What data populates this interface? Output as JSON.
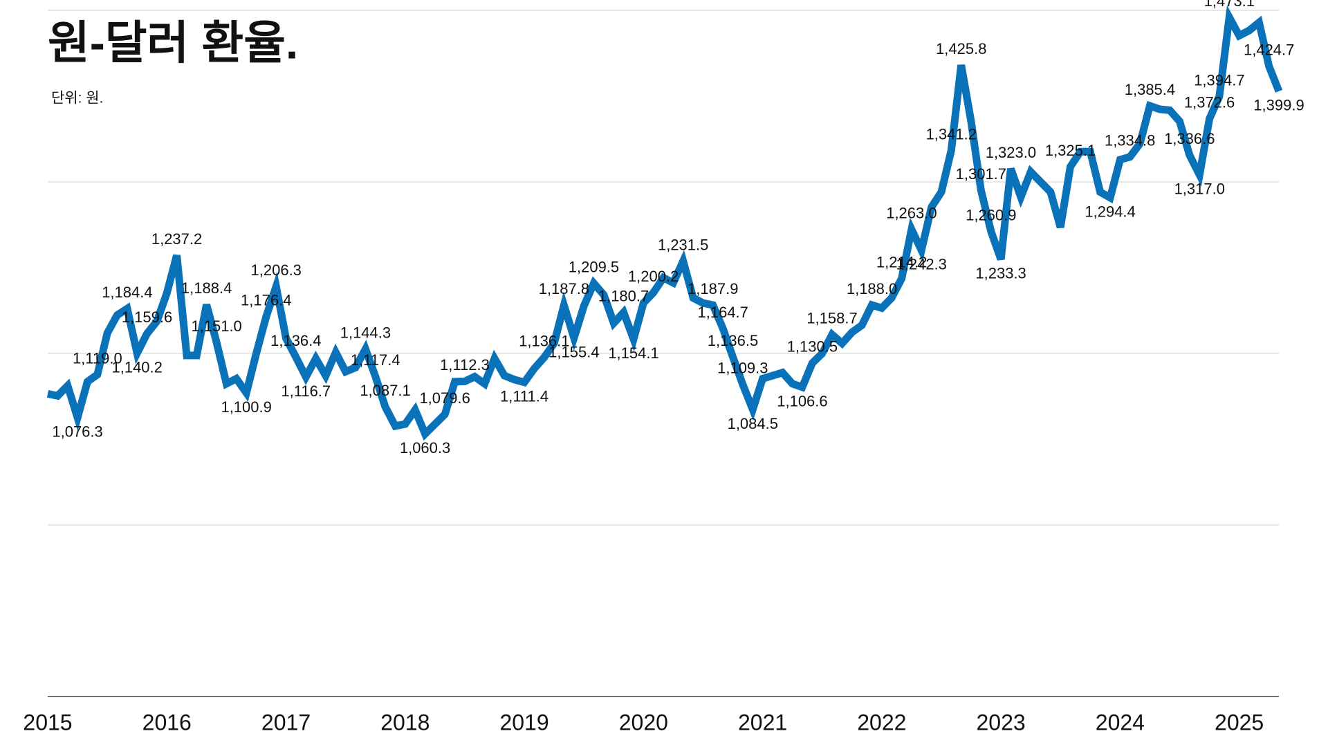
{
  "chart_data": {
    "type": "line",
    "title": "원-달러 환율.",
    "subtitle": "단위: 원.",
    "xlim": [
      2015,
      2025.333
    ],
    "xticks": [
      2015,
      2016,
      2017,
      2018,
      2019,
      2020,
      2021,
      2022,
      2023,
      2024,
      2025
    ],
    "ylim": [
      800,
      1480
    ],
    "yticks": [
      800,
      970,
      1140,
      1310,
      1480
    ],
    "grid": true,
    "x": [
      2015,
      2015.083,
      2015.167,
      2015.25,
      2015.333,
      2015.417,
      2015.5,
      2015.583,
      2015.667,
      2015.75,
      2015.833,
      2015.917,
      2016,
      2016.083,
      2016.167,
      2016.25,
      2016.333,
      2016.417,
      2016.5,
      2016.583,
      2016.667,
      2016.75,
      2016.833,
      2016.917,
      2017,
      2017.083,
      2017.167,
      2017.25,
      2017.333,
      2017.417,
      2017.5,
      2017.583,
      2017.667,
      2017.75,
      2017.833,
      2017.917,
      2018,
      2018.083,
      2018.167,
      2018.25,
      2018.333,
      2018.417,
      2018.5,
      2018.583,
      2018.667,
      2018.75,
      2018.833,
      2018.917,
      2019,
      2019.083,
      2019.167,
      2019.25,
      2019.333,
      2019.417,
      2019.5,
      2019.583,
      2019.667,
      2019.75,
      2019.833,
      2019.917,
      2020,
      2020.083,
      2020.167,
      2020.25,
      2020.333,
      2020.417,
      2020.5,
      2020.583,
      2020.667,
      2020.75,
      2020.833,
      2020.917,
      2021,
      2021.083,
      2021.167,
      2021.25,
      2021.333,
      2021.417,
      2021.5,
      2021.583,
      2021.667,
      2021.75,
      2021.833,
      2021.917,
      2022,
      2022.083,
      2022.167,
      2022.25,
      2022.333,
      2022.417,
      2022.5,
      2022.583,
      2022.667,
      2022.75,
      2022.833,
      2022.917,
      2023,
      2023.083,
      2023.167,
      2023.25,
      2023.333,
      2023.417,
      2023.5,
      2023.583,
      2023.667,
      2023.75,
      2023.833,
      2023.917,
      2024,
      2024.083,
      2024.167,
      2024.25,
      2024.333,
      2024.417,
      2024.5,
      2024.583,
      2024.667,
      2024.75,
      2024.833,
      2024.917,
      2025,
      2025.083,
      2025.167,
      2025.25,
      2025.333
    ],
    "series": [
      {
        "color": "#0a72b8",
        "values": [
          1100,
          1098,
          1108,
          1076.3,
          1112,
          1119.0,
          1160,
          1178,
          1184.4,
          1140.2,
          1159.6,
          1172,
          1200,
          1237.2,
          1138,
          1138,
          1188.4,
          1151.0,
          1110,
          1115,
          1100.9,
          1140,
          1176.4,
          1206.3,
          1155,
          1136.4,
          1116.7,
          1135,
          1118,
          1141,
          1122,
          1126,
          1144.3,
          1117.4,
          1087.1,
          1068,
          1070,
          1084,
          1060.3,
          1070,
          1079.6,
          1112,
          1112.3,
          1117,
          1110,
          1135,
          1118,
          1114,
          1111.4,
          1125,
          1136.1,
          1150,
          1187.8,
          1155.4,
          1187,
          1209.5,
          1198,
          1170,
          1180.7,
          1154.1,
          1190,
          1200.2,
          1215,
          1210,
          1231.5,
          1195,
          1190,
          1187.9,
          1164.7,
          1136.5,
          1109.3,
          1084.5,
          1115,
          1118,
          1121,
          1110,
          1106.6,
          1130.5,
          1140,
          1158.7,
          1150,
          1161,
          1168,
          1188.0,
          1185,
          1195,
          1214.2,
          1263.0,
          1242.3,
          1285,
          1300,
          1341.2,
          1425.8,
          1370,
          1301.7,
          1260.9,
          1233.3,
          1323.0,
          1295,
          1320,
          1310,
          1300,
          1265,
          1325.1,
          1340,
          1340,
          1300,
          1294.4,
          1332,
          1334.8,
          1348,
          1385.4,
          1382,
          1381,
          1370,
          1336.6,
          1317.0,
          1372.6,
          1394.7,
          1473.1,
          1455,
          1460,
          1468,
          1424.7,
          1399.9
        ],
        "value_labels": [
          null,
          null,
          null,
          "1,076.3",
          null,
          "1,119.0",
          null,
          null,
          "1,184.4",
          "1,140.2",
          "1,159.6",
          null,
          null,
          "1,237.2",
          null,
          null,
          "1,188.4",
          "1,151.0",
          null,
          null,
          "1,100.9",
          null,
          "1,176.4",
          "1,206.3",
          null,
          "1,136.4",
          "1,116.7",
          null,
          null,
          null,
          null,
          null,
          "1,144.3",
          "1,117.4",
          "1,087.1",
          null,
          null,
          null,
          "1,060.3",
          null,
          "1,079.6",
          null,
          "1,112.3",
          null,
          null,
          null,
          null,
          null,
          "1,111.4",
          null,
          "1,136.1",
          null,
          "1,187.8",
          "1,155.4",
          null,
          "1,209.5",
          null,
          null,
          "1,180.7",
          "1,154.1",
          null,
          "1,200.2",
          null,
          null,
          "1,231.5",
          null,
          null,
          "1,187.9",
          "1,164.7",
          "1,136.5",
          "1,109.3",
          "1,084.5",
          null,
          null,
          null,
          null,
          "1,106.6",
          "1,130.5",
          null,
          "1,158.7",
          null,
          null,
          null,
          "1,188.0",
          null,
          null,
          "1,214.2",
          "1,263.0",
          "1,242.3",
          null,
          null,
          "1,341.2",
          "1,425.8",
          null,
          "1,301.7",
          "1,260.9",
          "1,233.3",
          "1,323.0",
          null,
          null,
          null,
          null,
          null,
          "1,325.1",
          null,
          null,
          null,
          "1,294.4",
          null,
          "1,334.8",
          null,
          "1,385.4",
          null,
          null,
          null,
          "1,336.6",
          "1,317.0",
          "1,372.6",
          "1,394.7",
          "1,473.1",
          null,
          null,
          null,
          "1,424.7",
          "1,399.9"
        ]
      }
    ]
  }
}
